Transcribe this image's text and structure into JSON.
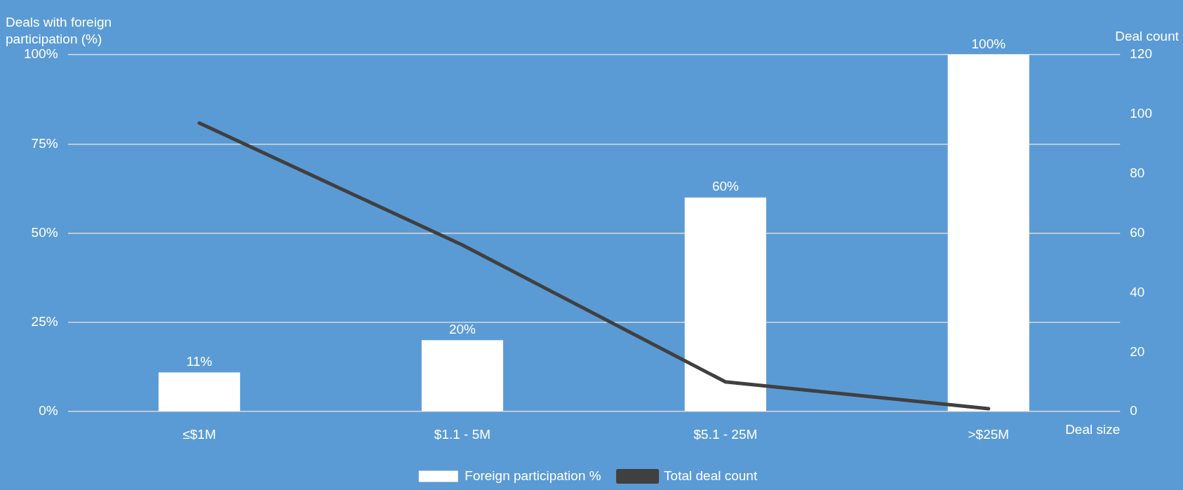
{
  "chart_data": {
    "type": "bar",
    "categories": [
      "≤$1M",
      "$1.1 - 5M",
      "$5.1 - 25M",
      ">$25M"
    ],
    "series": [
      {
        "name": "Foreign participation %",
        "color": "#ffffff",
        "values": [
          11,
          20,
          60,
          100
        ],
        "value_labels": [
          "11%",
          "20%",
          "60%",
          "100%"
        ]
      },
      {
        "name": "Total deal count",
        "type": "line",
        "axis": "y2",
        "color": "#404040",
        "values": [
          97,
          56,
          10,
          1
        ]
      }
    ],
    "ylabel": "Deals with foreign participation (%)",
    "y2label": "Deal count",
    "xlabel": "Deal size",
    "ylim": [
      0,
      100
    ],
    "yticks": [
      {
        "value": 0,
        "label": "0%"
      },
      {
        "value": 25,
        "label": "25%"
      },
      {
        "value": 50,
        "label": "50%"
      },
      {
        "value": 75,
        "label": "75%"
      },
      {
        "value": 100,
        "label": "100%"
      }
    ],
    "y2lim": [
      0,
      120
    ],
    "y2ticks": [
      0,
      20,
      40,
      60,
      80,
      100,
      120
    ],
    "grid": "y",
    "legend": "bottom",
    "marker": "none"
  }
}
